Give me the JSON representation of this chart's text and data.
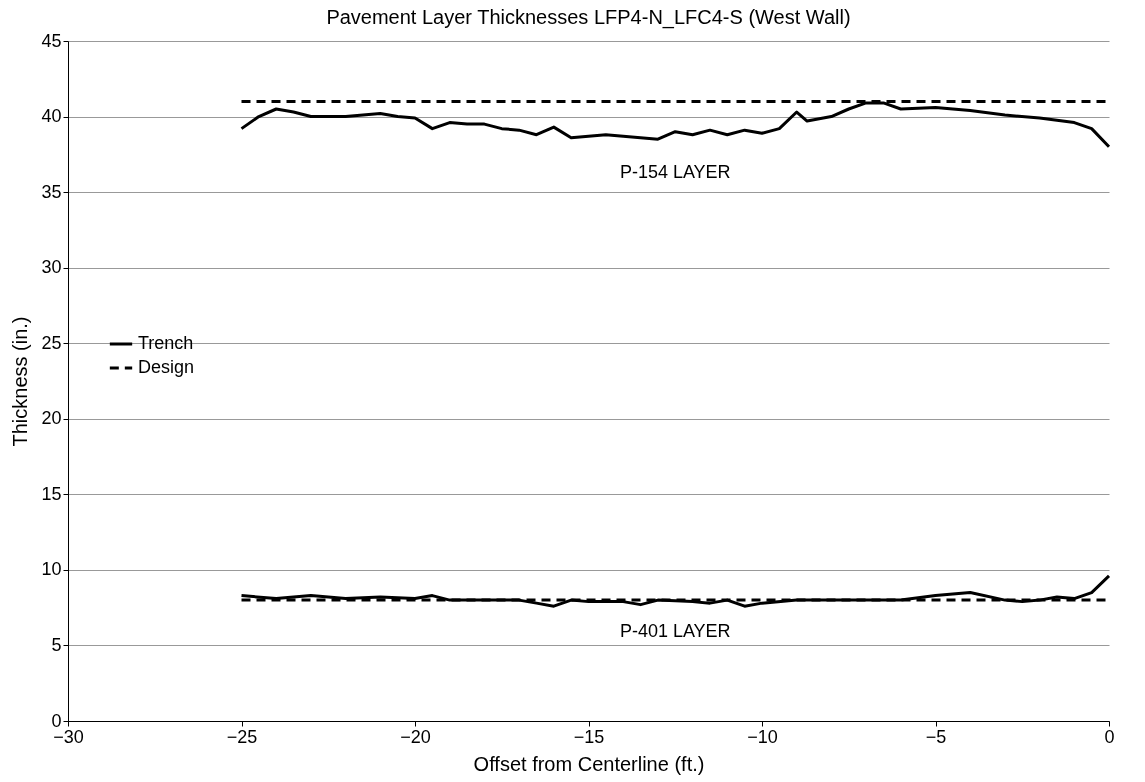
{
  "chart_data": {
    "type": "line",
    "title": "Pavement Layer Thicknesses LFP4-N_LFC4-S  (West Wall)",
    "xlabel": "Offset from Centerline (ft.)",
    "ylabel": "Thickness (in.)",
    "xlim": [
      -30,
      0
    ],
    "xticks": [
      {
        "value": -30,
        "label": "−30"
      },
      {
        "value": -25,
        "label": "−25"
      },
      {
        "value": -20,
        "label": "−20"
      },
      {
        "value": -15,
        "label": "−15"
      },
      {
        "value": -10,
        "label": "−10"
      },
      {
        "value": -5,
        "label": "−5"
      },
      0
    ],
    "ylim": [
      0,
      45
    ],
    "yticks": [
      0,
      5,
      10,
      15,
      20,
      25,
      30,
      35,
      40,
      45
    ],
    "grid": "y",
    "legend": "left",
    "marker": "none",
    "annotations": [
      "P-154 LAYER",
      "P-401 LAYER"
    ],
    "series": [
      {
        "name": "Trench",
        "color": "#000000",
        "line_style": "solid",
        "x": [
          -25,
          -24.5,
          -24,
          -23.5,
          -23,
          -22,
          -21,
          -20.5,
          -20,
          -19.5,
          -19,
          -18.5,
          -18,
          -17.5,
          -17,
          -16.5,
          -16,
          -15.5,
          -15,
          -14.5,
          -14,
          -13,
          -12.5,
          -12,
          -11.5,
          -11,
          -10.5,
          -10,
          -9.5,
          -9,
          -8.7,
          -8,
          -7.5,
          -7,
          -6.5,
          -6,
          -5,
          -4,
          -3,
          -2,
          -1,
          -0.5,
          0
        ],
        "values": [
          39.2,
          40.0,
          40.5,
          40.3,
          40.0,
          40.0,
          40.2,
          40.0,
          39.9,
          39.2,
          39.6,
          39.5,
          39.5,
          39.2,
          39.1,
          38.8,
          39.3,
          38.6,
          38.7,
          38.8,
          38.7,
          38.5,
          39.0,
          38.8,
          39.1,
          38.8,
          39.1,
          38.9,
          39.2,
          40.3,
          39.7,
          40.0,
          40.5,
          40.9,
          40.9,
          40.5,
          40.6,
          40.4,
          40.1,
          39.9,
          39.6,
          39.2,
          38.0
        ]
      },
      {
        "color": "#000000",
        "line_style": "solid",
        "x": [
          -25,
          -24,
          -23,
          -22,
          -21,
          -20,
          -19.5,
          -19,
          -17,
          -16.5,
          -16,
          -15.5,
          -15,
          -14,
          -13.5,
          -13,
          -12,
          -11.5,
          -11,
          -10.5,
          -10,
          -9,
          -7,
          -6,
          -5,
          -4,
          -3,
          -2.5,
          -2,
          -1.5,
          -1,
          -0.5,
          0
        ],
        "values": [
          8.3,
          8.1,
          8.3,
          8.1,
          8.2,
          8.1,
          8.3,
          8.0,
          8.0,
          7.8,
          7.6,
          8.0,
          7.9,
          7.9,
          7.7,
          8.0,
          7.9,
          7.8,
          8.0,
          7.6,
          7.8,
          8.0,
          8.0,
          8.0,
          8.3,
          8.5,
          8.0,
          7.9,
          8.0,
          8.2,
          8.1,
          8.5,
          9.6
        ]
      },
      {
        "name": "Design",
        "color": "#000000",
        "line_style": "dashed",
        "x": [
          -25,
          0
        ],
        "values": [
          41,
          41
        ]
      },
      {
        "color": "#000000",
        "line_style": "dashed",
        "x": [
          -25,
          0
        ],
        "values": [
          8,
          8
        ]
      }
    ]
  }
}
